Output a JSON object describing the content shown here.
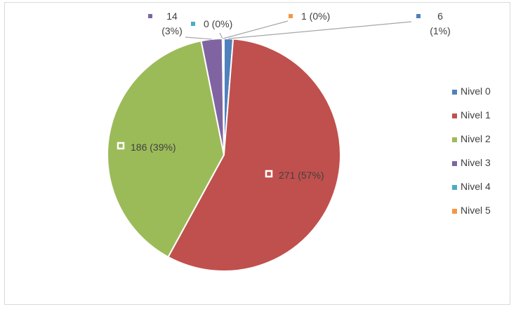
{
  "chart_data": {
    "type": "pie",
    "categories": [
      "Nivel 0",
      "Nivel 1",
      "Nivel 2",
      "Nivel 3",
      "Nivel 4",
      "Nivel 5"
    ],
    "values": [
      6,
      271,
      186,
      14,
      0,
      1
    ],
    "data_labels": [
      "6 (1%)",
      "271 (57%)",
      "186 (39%)",
      "14 (3%)",
      "0 (0%)",
      "1 (0%)"
    ],
    "colors": [
      "#4f81bd",
      "#c0504d",
      "#9bbb59",
      "#8064a2",
      "#4bacc6",
      "#f79646"
    ],
    "title": "",
    "legend_position": "right",
    "legend": [
      "Nivel 0",
      "Nivel 1",
      "Nivel 2",
      "Nivel 3",
      "Nivel 4",
      "Nivel 5"
    ]
  }
}
